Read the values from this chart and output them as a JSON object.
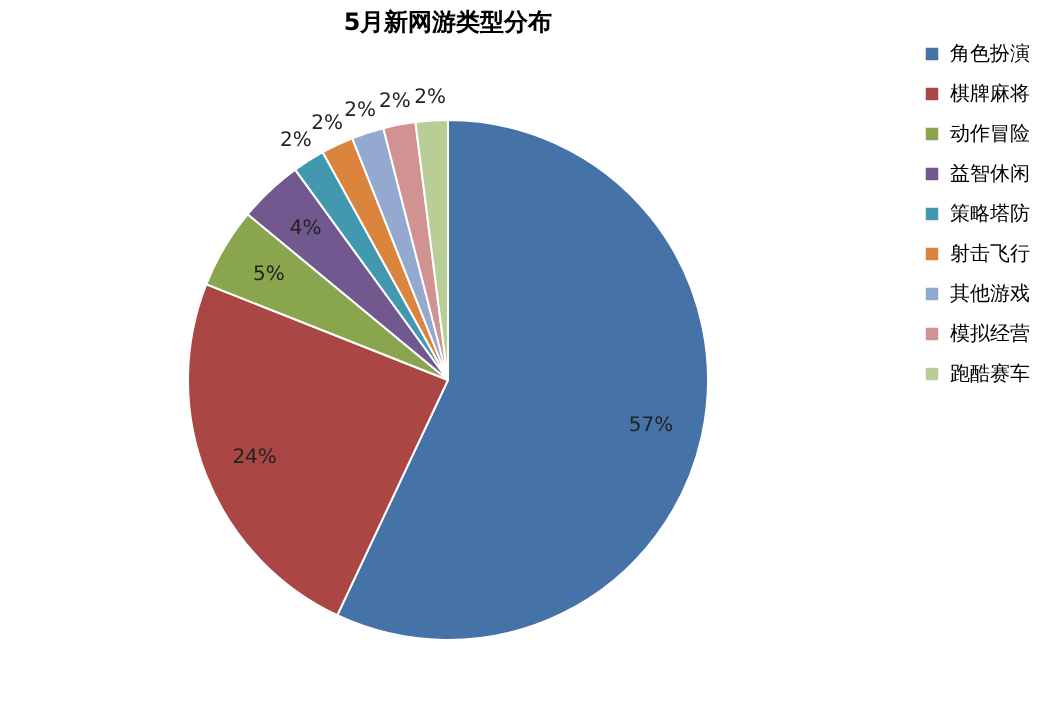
{
  "chart_data": {
    "type": "pie",
    "title": "5月新网游类型分布",
    "categories": [
      "角色扮演",
      "棋牌麻将",
      "动作冒险",
      "益智休闲",
      "策略塔防",
      "射击飞行",
      "其他游戏",
      "模拟经营",
      "跑酷赛车"
    ],
    "values": [
      57,
      24,
      5,
      4,
      2,
      2,
      2,
      2,
      2
    ],
    "value_labels": [
      "57%",
      "24%",
      "5%",
      "4%",
      "2%",
      "2%",
      "2%",
      "2%",
      "2%"
    ],
    "colors": [
      "#4572a7",
      "#aa4643",
      "#89a54e",
      "#71588f",
      "#4198af",
      "#db843d",
      "#93a9cf",
      "#d19392",
      "#b9cd96"
    ],
    "legend": "right"
  }
}
